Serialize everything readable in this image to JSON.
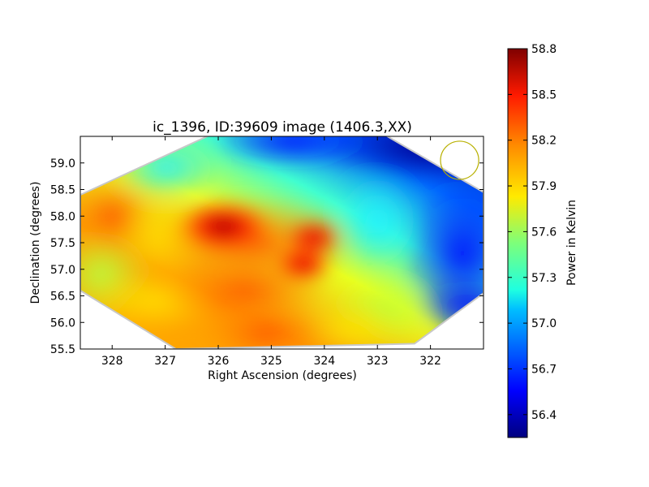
{
  "chart_data": {
    "type": "heatmap",
    "title": "ic_1396, ID:39609 image (1406.3,XX)",
    "xlabel": "Right Ascension (degrees)",
    "ylabel": "Declination (degrees)",
    "xlim": [
      328.6,
      321.0
    ],
    "ylim": [
      55.5,
      59.5
    ],
    "x_ticks": [
      328,
      327,
      326,
      325,
      324,
      323,
      322
    ],
    "x_tick_labels": [
      "328",
      "327",
      "326",
      "325",
      "324",
      "323",
      "322"
    ],
    "y_ticks": [
      55.5,
      56.0,
      56.5,
      57.0,
      57.5,
      58.0,
      58.5,
      59.0
    ],
    "y_tick_labels": [
      "55.5",
      "56.0",
      "56.5",
      "57.0",
      "57.5",
      "58.0",
      "58.5",
      "59.0"
    ],
    "colormap": "jet",
    "colorbar": {
      "label": "Power in Kelvin",
      "range": [
        56.25,
        58.8
      ],
      "ticks": [
        56.4,
        56.7,
        57.0,
        57.3,
        57.6,
        57.9,
        58.2,
        58.5,
        58.8
      ],
      "tick_labels": [
        "56.4",
        "56.7",
        "57.0",
        "57.3",
        "57.6",
        "57.9",
        "58.2",
        "58.5",
        "58.8"
      ]
    },
    "field_footprint_hexagon": [
      [
        326.1,
        59.55
      ],
      [
        322.9,
        59.55
      ],
      [
        321.0,
        58.45
      ],
      [
        321.0,
        56.55
      ],
      [
        322.3,
        55.6
      ],
      [
        326.8,
        55.5
      ],
      [
        328.6,
        56.6
      ],
      [
        328.6,
        58.4
      ]
    ],
    "beam_marker": {
      "center": [
        321.45,
        59.05
      ],
      "radius_deg": 0.36,
      "color": "#b8b000"
    },
    "hotspots": [
      {
        "ra": 325.9,
        "dec": 57.8,
        "value": 58.75
      },
      {
        "ra": 324.2,
        "dec": 57.6,
        "value": 58.55
      },
      {
        "ra": 324.4,
        "dec": 57.1,
        "value": 58.5
      }
    ],
    "coldspots": [
      {
        "ra": 322.3,
        "dec": 59.3,
        "value": 56.3
      },
      {
        "ra": 321.2,
        "dec": 57.5,
        "value": 56.5
      }
    ]
  }
}
